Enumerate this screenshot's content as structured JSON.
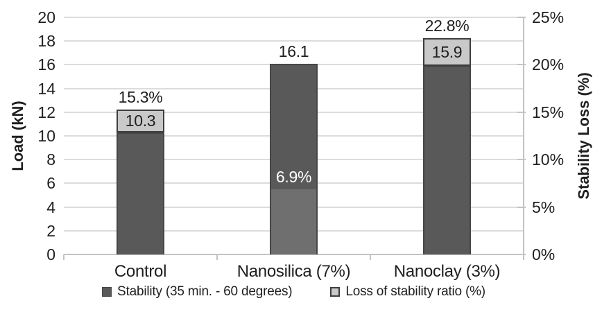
{
  "chart_data": {
    "type": "bar",
    "title": "",
    "categories": [
      "Control",
      "Nanosilica (7%)",
      "Nanoclay (3%)"
    ],
    "series": [
      {
        "name": "Stability (35 min. - 60 degrees)",
        "axis": "left",
        "values": [
          10.3,
          16.1,
          15.9
        ],
        "data_labels": [
          "10.3",
          "16.1",
          "15.9"
        ],
        "color": "#595959"
      },
      {
        "name": "Loss of stability ratio (%)",
        "axis": "right",
        "values": [
          15.3,
          6.9,
          22.8
        ],
        "data_labels": [
          "15.3%",
          "6.9%",
          "22.8%"
        ],
        "color": "#c9c9c9",
        "overlap_color": "#6f6f6f"
      }
    ],
    "ylabel_left": "Load (kN)",
    "ylabel_right": "Stability Loss (%)",
    "ylim_left": [
      0,
      20
    ],
    "ylim_right": [
      0,
      25
    ],
    "yticks_left": [
      0,
      2,
      4,
      6,
      8,
      10,
      12,
      14,
      16,
      18,
      20
    ],
    "yticks_right": [
      "0%",
      "5%",
      "10%",
      "15%",
      "20%",
      "25%"
    ],
    "grid": true,
    "legend_position": "bottom"
  },
  "colors": {
    "bar_dark": "#595959",
    "bar_light": "#c9c9c9",
    "bar_overlap": "#6f6f6f",
    "bar_border_dark": "#464646",
    "bar_border_light": "#3d3d3d",
    "gridline": "#dcdcdc",
    "axis_line": "#c3c3c3",
    "text": "#1f1f1f",
    "label_on_dark": "#ffffff"
  }
}
